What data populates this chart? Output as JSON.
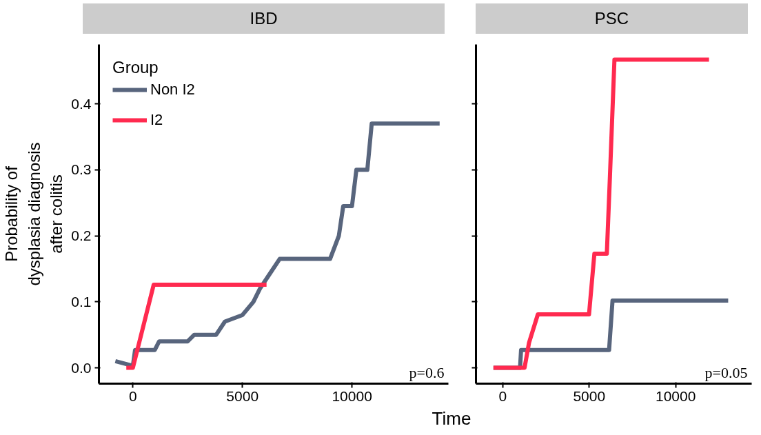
{
  "chart_data": [
    {
      "type": "line",
      "title": "IBD",
      "ylabel": "Probability of\ndysplasia diagnosis\nafter colitis",
      "xlabel": "Time",
      "legend_title": "Group",
      "legend": "top left",
      "line_style": "solid",
      "grid": false,
      "xlim": [
        -1550,
        14400
      ],
      "xticks": [
        0,
        5000,
        10000
      ],
      "ylim": [
        -0.024,
        0.49
      ],
      "yticks": [
        {
          "value": 0,
          "label": "0.0"
        },
        0.1,
        0.2,
        0.3,
        0.4
      ],
      "series": [
        {
          "name": "Non I2",
          "color": "#58657d",
          "x": [
            -800,
            0,
            100,
            1000,
            1200,
            2500,
            2800,
            3800,
            4200,
            5000,
            5500,
            5800,
            6200,
            6700,
            9000,
            9400,
            9600,
            10000,
            10200,
            10700,
            10900,
            14000
          ],
          "values": [
            0.01,
            0.003,
            0.027,
            0.027,
            0.04,
            0.04,
            0.05,
            0.05,
            0.07,
            0.08,
            0.1,
            0.12,
            0.14,
            0.165,
            0.165,
            0.2,
            0.245,
            0.245,
            0.3,
            0.3,
            0.37,
            0.37
          ]
        },
        {
          "name": "I2",
          "color": "#ff2a4f",
          "x": [
            -300,
            0,
            950,
            6100
          ],
          "values": [
            0,
            0,
            0.126,
            0.126
          ]
        }
      ],
      "annotations": [
        "p=0.6"
      ]
    },
    {
      "type": "line",
      "title": "PSC",
      "tick_labels": "x",
      "line_style": "solid",
      "grid": false,
      "xlim": [
        -1550,
        14400
      ],
      "xticks": [
        0,
        5000,
        10000
      ],
      "ylim": [
        -0.024,
        0.49
      ],
      "yticks": [
        0,
        0.1,
        0.2,
        0.3,
        0.4
      ],
      "series": [
        {
          "color": "#58657d",
          "x": [
            -540,
            1000,
            1060,
            6150,
            6350,
            13040
          ],
          "values": [
            0,
            0,
            0.027,
            0.027,
            0.102,
            0.102
          ]
        },
        {
          "color": "#ff2a4f",
          "x": [
            -540,
            1260,
            1520,
            2030,
            4990,
            5300,
            6020,
            6200,
            6460,
            11930
          ],
          "values": [
            0,
            0,
            0.038,
            0.081,
            0.081,
            0.173,
            0.173,
            0.29,
            0.467,
            0.467
          ]
        }
      ],
      "annotations": [
        "p=0.05"
      ]
    }
  ]
}
